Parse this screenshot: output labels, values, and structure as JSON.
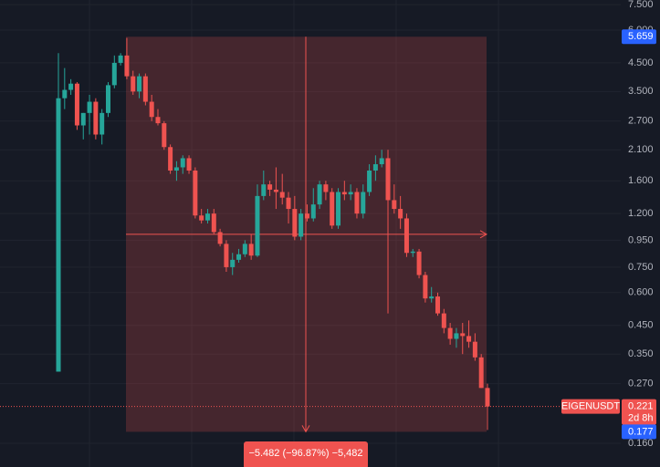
{
  "chart_data": {
    "type": "candlestick",
    "symbol": "EIGENUSDT",
    "log_scale": true,
    "grid": true,
    "up_color": "#26a69a",
    "down_color": "#ef5350",
    "ylim": [
      0.13,
      7.81
    ],
    "yticks": [
      {
        "value": 7.5,
        "label": "7.500"
      },
      {
        "value": 6.0,
        "label": "6.000"
      },
      {
        "value": 4.5,
        "label": "4.500"
      },
      {
        "value": 3.5,
        "label": "3.500"
      },
      {
        "value": 2.7,
        "label": "2.700"
      },
      {
        "value": 2.1,
        "label": "2.100"
      },
      {
        "value": 1.6,
        "label": "1.600"
      },
      {
        "value": 1.2,
        "label": "1.200"
      },
      {
        "value": 0.95,
        "label": "0.950"
      },
      {
        "value": 0.75,
        "label": "0.750"
      },
      {
        "value": 0.6,
        "label": "0.600"
      },
      {
        "value": 0.45,
        "label": "0.450"
      },
      {
        "value": 0.35,
        "label": "0.350"
      },
      {
        "value": 0.27,
        "label": "0.270"
      },
      {
        "value": 0.16,
        "label": "0.160"
      }
    ],
    "open": [
      0.3,
      3.3,
      3.55,
      3.75,
      2.6,
      2.9,
      3.2,
      2.4,
      2.9,
      3.7,
      4.5,
      4.8,
      4.0,
      3.5,
      4.0,
      3.2,
      2.8,
      2.65,
      2.15,
      1.75,
      1.8,
      1.95,
      1.75,
      1.18,
      1.13,
      1.2,
      1.02,
      0.92,
      0.75,
      0.8,
      0.84,
      0.92,
      0.83,
      1.4,
      1.55,
      1.48,
      1.45,
      1.38,
      1.25,
      0.98,
      1.2,
      1.15,
      1.3,
      1.55,
      1.45,
      1.08,
      1.45,
      1.42,
      1.45,
      1.2,
      1.45,
      1.75,
      1.85,
      1.95,
      1.35,
      1.25,
      1.15,
      0.85,
      0.86,
      0.7,
      0.57,
      0.58,
      0.5,
      0.44,
      0.4,
      0.42,
      0.41,
      0.39,
      0.34,
      0.26
    ],
    "high": [
      4.9,
      4.3,
      3.9,
      3.8,
      2.9,
      3.4,
      3.3,
      3.0,
      3.8,
      4.8,
      4.9,
      5.6,
      4.2,
      4.1,
      4.1,
      3.4,
      3.0,
      2.7,
      2.2,
      1.9,
      2.0,
      2.0,
      1.8,
      1.25,
      1.25,
      1.25,
      1.05,
      0.95,
      0.85,
      0.88,
      0.95,
      1.0,
      1.55,
      1.75,
      1.6,
      1.8,
      1.7,
      1.45,
      1.4,
      1.25,
      1.3,
      1.5,
      1.6,
      1.6,
      1.5,
      1.5,
      1.6,
      1.55,
      1.5,
      1.55,
      1.85,
      2.0,
      2.1,
      2.1,
      1.55,
      1.4,
      1.2,
      0.88,
      0.88,
      0.72,
      0.63,
      0.6,
      0.52,
      0.46,
      0.44,
      0.46,
      0.47,
      0.42,
      0.35,
      0.27
    ],
    "low": [
      0.3,
      3.0,
      3.4,
      2.5,
      2.3,
      2.4,
      2.3,
      2.2,
      2.8,
      3.6,
      4.4,
      3.9,
      3.4,
      3.3,
      3.1,
      2.7,
      2.6,
      2.1,
      1.7,
      1.6,
      1.7,
      1.7,
      1.15,
      1.1,
      1.1,
      1.0,
      0.9,
      0.72,
      0.7,
      0.78,
      0.82,
      0.8,
      0.82,
      1.35,
      1.4,
      1.25,
      1.3,
      1.1,
      0.95,
      0.95,
      1.12,
      1.12,
      1.25,
      1.35,
      1.05,
      1.05,
      1.35,
      1.35,
      1.15,
      1.15,
      1.4,
      1.6,
      1.8,
      0.5,
      1.2,
      1.05,
      0.82,
      0.82,
      0.68,
      0.55,
      0.55,
      0.49,
      0.42,
      0.38,
      0.37,
      0.35,
      0.37,
      0.33,
      0.26,
      0.18
    ],
    "close": [
      3.3,
      3.55,
      3.75,
      2.6,
      2.9,
      3.2,
      2.4,
      2.9,
      3.7,
      4.5,
      4.8,
      4.0,
      3.5,
      4.0,
      3.2,
      2.8,
      2.65,
      2.15,
      1.75,
      1.8,
      1.95,
      1.75,
      1.18,
      1.13,
      1.2,
      1.02,
      0.92,
      0.75,
      0.8,
      0.84,
      0.92,
      0.83,
      1.4,
      1.55,
      1.48,
      1.45,
      1.38,
      1.25,
      0.98,
      1.2,
      1.15,
      1.3,
      1.55,
      1.45,
      1.08,
      1.45,
      1.42,
      1.45,
      1.2,
      1.45,
      1.75,
      1.85,
      1.95,
      1.35,
      1.25,
      1.15,
      0.85,
      0.86,
      0.7,
      0.57,
      0.58,
      0.5,
      0.44,
      0.4,
      0.42,
      0.41,
      0.39,
      0.34,
      0.26,
      0.221
    ],
    "last_price": 0.221,
    "countdown": "2d 8h",
    "measure": {
      "from": 5.659,
      "to": 0.177,
      "label": "−5.482 (−96.87%) −5,482"
    }
  }
}
